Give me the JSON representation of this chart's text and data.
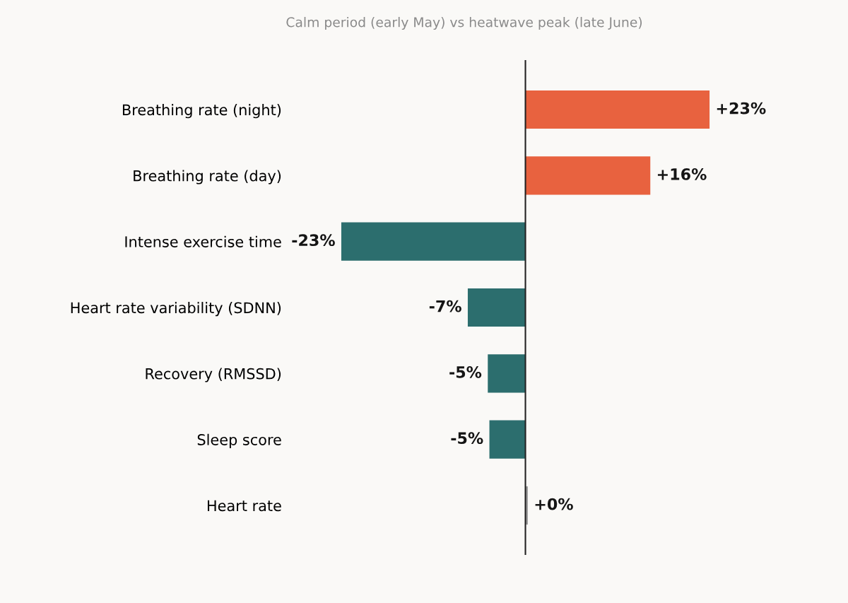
{
  "chart_data": {
    "type": "bar",
    "orientation": "horizontal",
    "title": "Calm period (early May) vs heatwave peak (late June)",
    "categories": [
      "Breathing rate (night)",
      "Breathing rate (day)",
      "Intense exercise time",
      "Heart rate variability (SDNN)",
      "Recovery (RMSSD)",
      "Sleep score",
      "Heart rate"
    ],
    "values": [
      23,
      15.6,
      -23,
      -7.2,
      -4.7,
      -4.5,
      0.3
    ],
    "colors": [
      "#e8623f",
      "#e8623f",
      "#2c6e6e",
      "#2c6e6e",
      "#2c6e6e",
      "#2c6e6e",
      "#999999"
    ],
    "value_labels": [
      "+23%",
      "+16%",
      "-23%",
      "-7%",
      "-5%",
      "-5%",
      "+0%"
    ],
    "ref_lines": [
      {
        "axis": "x",
        "value": 0,
        "color": "#222222"
      }
    ],
    "tick_labels": "y",
    "grid": false,
    "legend": false
  }
}
